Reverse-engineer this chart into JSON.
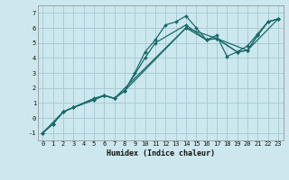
{
  "xlabel": "Humidex (Indice chaleur)",
  "ylabel": "",
  "xlim": [
    -0.5,
    23.5
  ],
  "ylim": [
    -1.5,
    7.5
  ],
  "xticks": [
    0,
    1,
    2,
    3,
    4,
    5,
    6,
    7,
    8,
    9,
    10,
    11,
    12,
    13,
    14,
    15,
    16,
    17,
    18,
    19,
    20,
    21,
    22,
    23
  ],
  "yticks": [
    -1,
    0,
    1,
    2,
    3,
    4,
    5,
    6,
    7
  ],
  "bg_color": "#cce8ee",
  "grid_color": "#aaccd4",
  "line_color": "#1a6b6b",
  "lines": [
    {
      "x": [
        0,
        1,
        2,
        3,
        5,
        6,
        7,
        8,
        9,
        10,
        11,
        12,
        13,
        14,
        15,
        16,
        17,
        18,
        19,
        20,
        21,
        22,
        23
      ],
      "y": [
        -1.0,
        -0.4,
        0.4,
        0.7,
        1.3,
        1.5,
        1.3,
        1.8,
        3.0,
        4.4,
        5.2,
        6.2,
        6.4,
        6.8,
        6.0,
        5.2,
        5.5,
        4.1,
        4.4,
        4.8,
        5.6,
        6.4,
        6.6
      ]
    },
    {
      "x": [
        0,
        1,
        2,
        3,
        5,
        6,
        7,
        8,
        10,
        11,
        14,
        16,
        17,
        19,
        20,
        21,
        22,
        23
      ],
      "y": [
        -1.0,
        -0.4,
        0.4,
        0.7,
        1.2,
        1.5,
        1.3,
        1.8,
        4.0,
        5.0,
        6.2,
        5.2,
        5.3,
        4.4,
        4.5,
        5.5,
        6.4,
        6.6
      ]
    },
    {
      "x": [
        0,
        1,
        2,
        3,
        5,
        6,
        7,
        8,
        14,
        16,
        17,
        19,
        20,
        21,
        22,
        23
      ],
      "y": [
        -1.0,
        -0.4,
        0.4,
        0.7,
        1.2,
        1.5,
        1.3,
        1.8,
        6.0,
        5.2,
        5.3,
        4.4,
        4.5,
        5.5,
        6.4,
        6.6
      ]
    },
    {
      "x": [
        0,
        2,
        3,
        6,
        7,
        14,
        17,
        20,
        23
      ],
      "y": [
        -1.0,
        0.4,
        0.7,
        1.5,
        1.3,
        6.0,
        5.3,
        4.5,
        6.6
      ]
    }
  ]
}
